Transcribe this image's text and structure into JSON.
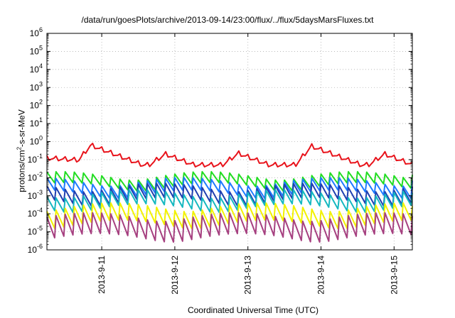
{
  "chart_data": {
    "type": "line",
    "title": "/data/run/goesPlots/archive/2013-09-14/23:00/flux/../flux/5daysMarsFluxes.txt",
    "xlabel": "Coordinated Universal Time (UTC)",
    "ylabel_main": "protons/cm",
    "ylabel_sup": "2",
    "ylabel_tail": "-s-sr-MeV",
    "y_scale": "log",
    "ylim": [
      1e-06,
      1000000.0
    ],
    "xlim_days": [
      0,
      5
    ],
    "grid": true,
    "y_ticks": [
      {
        "base": "10",
        "exp": "-6",
        "value": 1e-06
      },
      {
        "base": "10",
        "exp": "-5",
        "value": 1e-05
      },
      {
        "base": "10",
        "exp": "-4",
        "value": 0.0001
      },
      {
        "base": "10",
        "exp": "-3",
        "value": 0.001
      },
      {
        "base": "10",
        "exp": "-2",
        "value": 0.01
      },
      {
        "base": "10",
        "exp": "-1",
        "value": 0.1
      },
      {
        "base": "10",
        "exp": "0",
        "value": 1
      },
      {
        "base": "10",
        "exp": "1",
        "value": 10
      },
      {
        "base": "10",
        "exp": "2",
        "value": 100
      },
      {
        "base": "10",
        "exp": "3",
        "value": 1000
      },
      {
        "base": "10",
        "exp": "4",
        "value": 10000
      },
      {
        "base": "10",
        "exp": "5",
        "value": 100000
      },
      {
        "base": "10",
        "exp": "6",
        "value": 1000000
      }
    ],
    "x_ticks": [
      {
        "label": "2013-9-11",
        "day": 0.75
      },
      {
        "label": "2013-9-12",
        "day": 1.75
      },
      {
        "label": "2013-9-13",
        "day": 2.75
      },
      {
        "label": "2013-9-14",
        "day": 3.75
      },
      {
        "label": "2013-9-15",
        "day": 4.75
      }
    ],
    "series": [
      {
        "color": "#e8131b",
        "base": 0.12,
        "amp_lo": 0.68,
        "amp_hi": 1.4,
        "peaks": [
          {
            "day": 0.6,
            "value": 0.62
          },
          {
            "day": 1.62,
            "value": 0.2
          },
          {
            "day": 2.62,
            "value": 0.22
          },
          {
            "day": 3.62,
            "value": 0.55
          },
          {
            "day": 4.62,
            "value": 0.2
          }
        ],
        "trough": 0.05
      },
      {
        "color": "#22dd22",
        "base": 0.009,
        "amp_lo": 0.4,
        "amp_hi": 1.6
      },
      {
        "color": "#1e7bff",
        "base": 0.004,
        "amp_lo": 0.35,
        "amp_hi": 1.7
      },
      {
        "color": "#1f3fb0",
        "base": 0.0018,
        "amp_lo": 0.3,
        "amp_hi": 1.8
      },
      {
        "color": "#15b8c0",
        "base": 0.0008,
        "amp_lo": 0.3,
        "amp_hi": 1.8
      },
      {
        "color": "#f2f200",
        "base": 0.00012,
        "amp_lo": 0.25,
        "amp_hi": 2.2
      },
      {
        "color": "#a64080",
        "base": 3e-05,
        "amp_lo": 0.18,
        "amp_hi": 2.5
      }
    ]
  }
}
